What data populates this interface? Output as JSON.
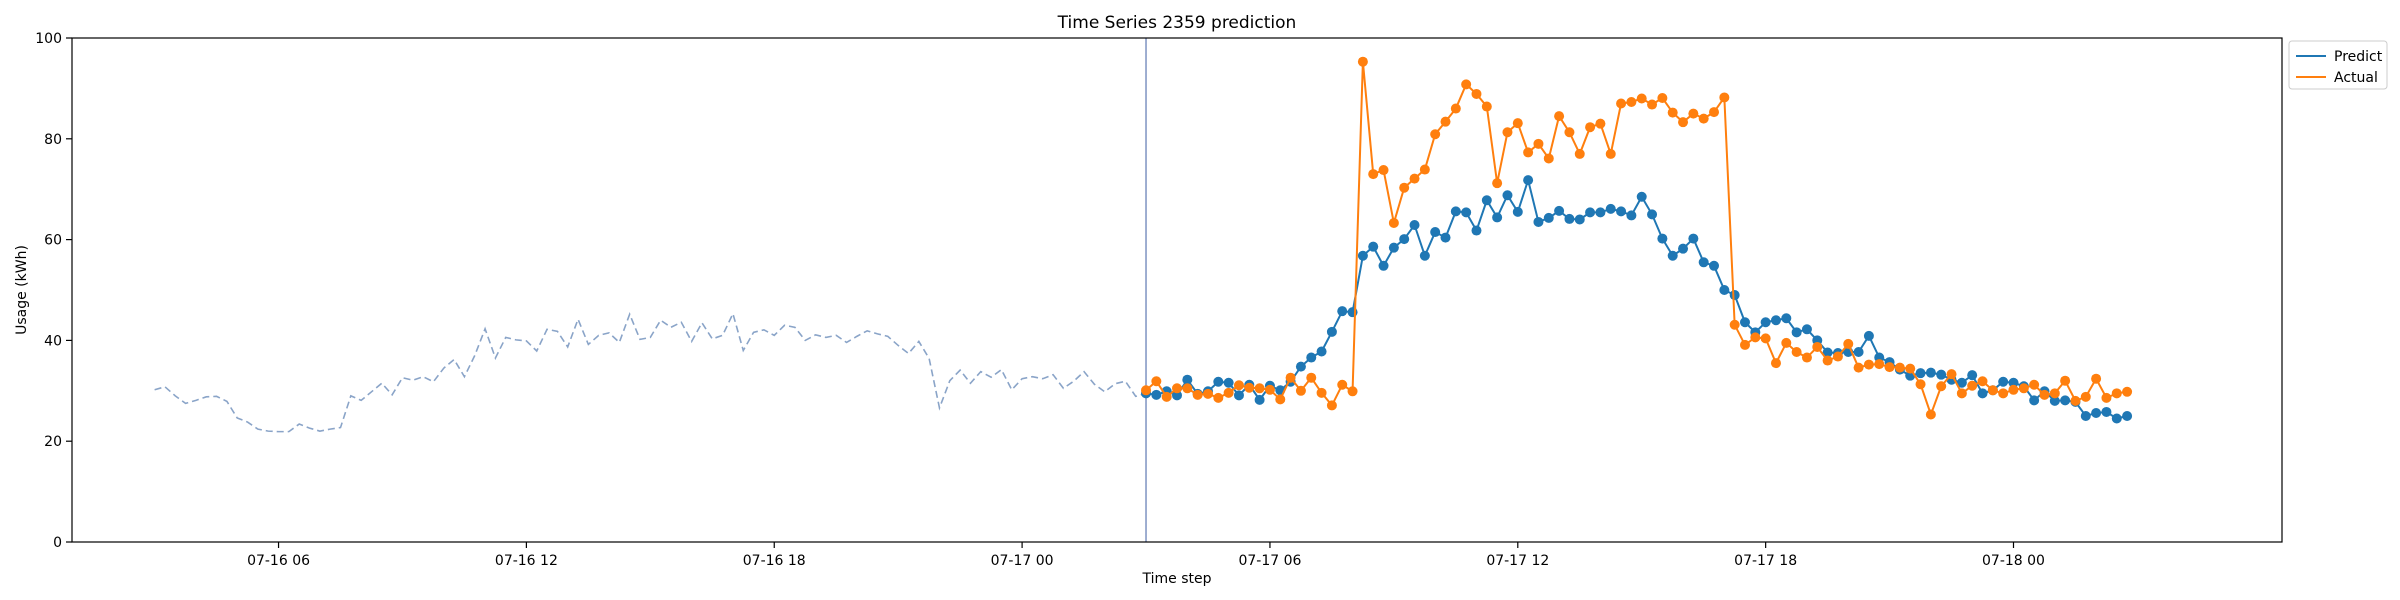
{
  "chart_data": {
    "type": "line",
    "title": "Time Series 2359 prediction",
    "xlabel": "Time step",
    "ylabel": "Usage (kWh)",
    "ylim": [
      0,
      100
    ],
    "xlim": [
      "07-16 01:00",
      "07-18 06:30"
    ],
    "x_ticks": [
      "07-16 06:00",
      "07-16 12:00",
      "07-16 18:00",
      "07-17 00:00",
      "07-17 06:00",
      "07-17 12:00",
      "07-17 18:00",
      "07-18 00:00"
    ],
    "x_tick_labels": [
      "07-16 06",
      "07-16 12",
      "07-16 18",
      "07-17 00",
      "07-17 06",
      "07-17 12",
      "07-17 18",
      "07-18 00"
    ],
    "y_ticks": [
      0,
      20,
      40,
      60,
      80,
      100
    ],
    "forecast_start": "07-17 03:00",
    "step_minutes": 15,
    "grid": false,
    "legend_position": "outside-top-right",
    "history": {
      "start": "07-16 03:00",
      "step_minutes": 15,
      "color": "#8aa4c8",
      "style": "dashed",
      "values": [
        30.2,
        30.8,
        29.0,
        27.5,
        28.1,
        28.8,
        28.9,
        27.9,
        24.6,
        23.8,
        22.4,
        22.0,
        21.9,
        21.9,
        23.4,
        22.6,
        22.0,
        22.4,
        22.7,
        29.0,
        28.1,
        29.8,
        31.5,
        29.2,
        32.6,
        32.1,
        32.8,
        31.8,
        34.5,
        36.2,
        32.8,
        37.0,
        42.3,
        36.5,
        40.6,
        40.1,
        39.9,
        37.9,
        42.2,
        41.8,
        38.7,
        44.2,
        39.2,
        41.0,
        41.5,
        39.6,
        45.2,
        40.2,
        40.6,
        44.0,
        42.6,
        43.6,
        39.8,
        43.5,
        40.3,
        41.0,
        45.3,
        38.0,
        41.6,
        42.1,
        41.0,
        43.0,
        42.6,
        40.0,
        41.1,
        40.6,
        41.0,
        39.6,
        40.8,
        41.9,
        41.3,
        40.8,
        39.0,
        37.4,
        39.8,
        36.4,
        26.6,
        32.0,
        34.1,
        31.5,
        33.8,
        32.7,
        34.2,
        30.2,
        32.4,
        32.8,
        32.4,
        33.2,
        30.5,
        31.9,
        33.8,
        31.3,
        29.8,
        31.4,
        31.9,
        28.9,
        29.5
      ]
    },
    "series": [
      {
        "name": "Predict",
        "color": "#1f77b4",
        "start": "07-17 03:00",
        "values": [
          29.5,
          29.2,
          29.9,
          29.1,
          32.2,
          29.4,
          29.9,
          31.8,
          31.6,
          29.1,
          31.2,
          28.2,
          31.0,
          30.1,
          31.8,
          34.8,
          36.6,
          37.8,
          41.7,
          45.8,
          45.6,
          56.8,
          58.6,
          54.8,
          58.4,
          60.1,
          62.9,
          56.8,
          61.5,
          60.4,
          65.6,
          65.4,
          61.8,
          67.8,
          64.4,
          68.8,
          65.5,
          71.8,
          63.5,
          64.3,
          65.7,
          64.1,
          64.0,
          65.4,
          65.4,
          66.1,
          65.6,
          64.8,
          68.5,
          65.0,
          60.2,
          56.8,
          58.2,
          60.2,
          55.5,
          54.8,
          50.0,
          49.0,
          43.6,
          41.6,
          43.6,
          44.0,
          44.4,
          41.6,
          42.2,
          40.0,
          37.6,
          37.5,
          37.7,
          37.7,
          40.9,
          36.6,
          35.7,
          34.2,
          33.0,
          33.5,
          33.6,
          33.2,
          32.2,
          31.6,
          33.1,
          29.5,
          30.1,
          31.8,
          31.6,
          30.9,
          28.1,
          29.9,
          28.0,
          28.1,
          27.8,
          25.0,
          25.6,
          25.8,
          24.5,
          25.0
        ]
      },
      {
        "name": "Actual",
        "color": "#ff7f0e",
        "start": "07-17 03:00",
        "values": [
          30.1,
          31.9,
          28.8,
          30.5,
          30.5,
          29.2,
          29.4,
          28.6,
          29.6,
          31.1,
          30.6,
          30.5,
          30.2,
          28.3,
          32.6,
          30.0,
          32.6,
          29.6,
          27.1,
          31.2,
          29.9,
          95.3,
          73.0,
          73.8,
          63.3,
          70.3,
          72.1,
          73.9,
          80.9,
          83.4,
          86.0,
          90.8,
          88.9,
          86.4,
          71.2,
          81.3,
          83.1,
          77.3,
          79.0,
          76.1,
          84.5,
          81.3,
          77.0,
          82.3,
          83.0,
          77.0,
          87.0,
          87.3,
          88.0,
          86.8,
          88.1,
          85.2,
          83.3,
          85.0,
          84.0,
          85.3,
          88.2,
          43.1,
          39.1,
          40.6,
          40.4,
          35.5,
          39.5,
          37.7,
          36.6,
          38.7,
          36.0,
          36.8,
          39.3,
          34.6,
          35.2,
          35.3,
          34.7,
          34.6,
          34.4,
          31.3,
          25.3,
          30.9,
          33.3,
          29.5,
          31.0,
          31.9,
          30.1,
          29.5,
          30.2,
          30.5,
          31.2,
          29.2,
          29.5,
          32.0,
          28.0,
          28.8,
          32.4,
          28.6,
          29.5,
          29.8
        ]
      }
    ]
  }
}
